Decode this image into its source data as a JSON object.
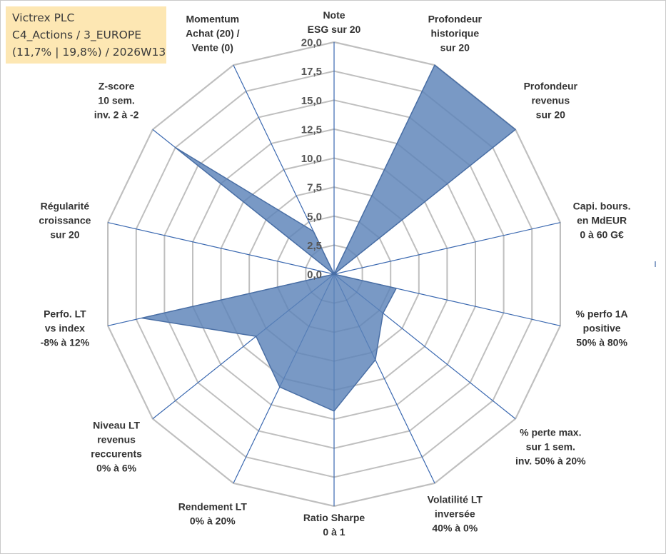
{
  "info": {
    "line1": "Victrex PLC",
    "line2": "C4_Actions / 3_EUROPE",
    "line3": "(11,7% | 19,8%) / 2026W13"
  },
  "colors": {
    "grid": "#bfbfbf",
    "spoke": "#3a68b0",
    "fill": "#5b82b8",
    "stroke": "#4a6fa5",
    "box": "#fde7b3"
  },
  "chart_data": {
    "type": "radar",
    "rmax": 20,
    "tick_labels": [
      "0,0",
      "2,5",
      "5,0",
      "7,5",
      "10,0",
      "12,5",
      "15,0",
      "17,5",
      "20,0"
    ],
    "axes": [
      {
        "label": [
          "Note",
          "ESG sur 20"
        ],
        "value": 0
      },
      {
        "label": [
          "Profondeur",
          "historique",
          "sur 20"
        ],
        "value": 20
      },
      {
        "label": [
          "Profondeur",
          "revenus",
          "sur 20"
        ],
        "value": 20
      },
      {
        "label": [
          "Capi. bours.",
          "en MdEUR",
          "0 à 60 G€"
        ],
        "value": 0
      },
      {
        "label": [
          "% perfo 1A",
          "positive",
          "50% à 80%"
        ],
        "value": 5.5
      },
      {
        "label": [
          "% perte max.",
          "sur 1 sem.",
          "inv. 50% à 20%"
        ],
        "value": 5.4
      },
      {
        "label": [
          "Volatilité LT",
          "inversée",
          "40% à 0%"
        ],
        "value": 8.2
      },
      {
        "label": [
          "Ratio Sharpe",
          "0 à 1"
        ],
        "value": 11.8
      },
      {
        "label": [
          "Rendement LT",
          "0% à 20%"
        ],
        "value": 10.8
      },
      {
        "label": [
          "Niveau LT",
          "revenus",
          "reccurents",
          "0% à 6%"
        ],
        "value": 8.6
      },
      {
        "label": [
          "Perfo. LT",
          "vs index",
          "-8% à 12%"
        ],
        "value": 17.0
      },
      {
        "label": [
          "Régularité",
          "croissance",
          "sur 20"
        ],
        "value": 0
      },
      {
        "label": [
          "Z-score",
          "10 sem.",
          "inv. 2 à -2"
        ],
        "value": 17.5
      },
      {
        "label": [
          "Momentum",
          "Achat (20) /",
          "Vente (0)"
        ],
        "value": 4.1
      }
    ]
  }
}
